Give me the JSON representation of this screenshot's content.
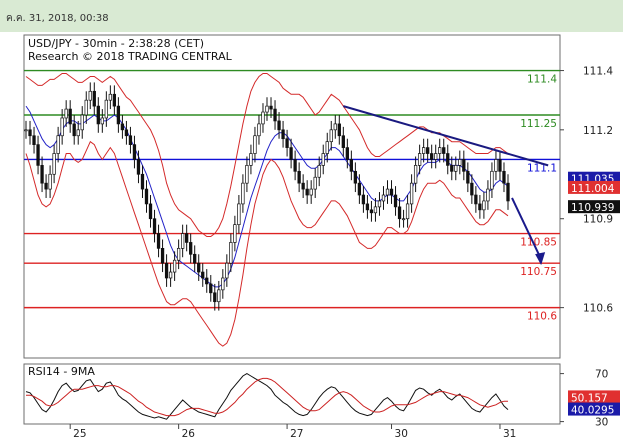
{
  "datestamp": "ค.ค. 31, 2018, 00:38",
  "chart_data": [
    {
      "type": "candlestick",
      "title": "USD/JPY - 30min - 2:38:28 (CET)",
      "subtitle": "Research © 2018 TRADING CENTRAL",
      "ylim": [
        110.43,
        111.52
      ],
      "y_ticks": [
        {
          "value": 111.4,
          "label": "111.4"
        },
        {
          "value": 111.2,
          "label": "111.2"
        },
        {
          "value": 110.9,
          "label": "110.9"
        },
        {
          "value": 110.6,
          "label": "110.6"
        }
      ],
      "x_ticks": [
        {
          "index": 11,
          "label": "25"
        },
        {
          "index": 38,
          "label": "26"
        },
        {
          "index": 65,
          "label": "27"
        },
        {
          "index": 91,
          "label": "30"
        },
        {
          "index": 118,
          "label": "31"
        }
      ],
      "levels": [
        {
          "value": 111.4,
          "label": "111.4",
          "color": "#2e8b22"
        },
        {
          "value": 111.25,
          "label": "111.25",
          "color": "#2e8b22"
        },
        {
          "value": 111.1,
          "label": "111.1",
          "color": "#1010d8"
        },
        {
          "value": 110.85,
          "label": "110.85",
          "color": "#dd2222"
        },
        {
          "value": 110.75,
          "label": "110.75",
          "color": "#dd2222"
        },
        {
          "value": 110.6,
          "label": "110.6",
          "color": "#dd2222"
        }
      ],
      "value_badges": [
        {
          "value": 111.035,
          "label": "111.035",
          "color": "#1a1aa8"
        },
        {
          "value": 111.004,
          "label": "111.004",
          "color": "#e03030"
        },
        {
          "value": 110.939,
          "label": "110.939",
          "color": "#111111"
        }
      ],
      "close": [
        111.2,
        111.18,
        111.15,
        111.08,
        111.02,
        111.0,
        111.05,
        111.12,
        111.18,
        111.24,
        111.27,
        111.22,
        111.18,
        111.2,
        111.25,
        111.3,
        111.33,
        111.28,
        111.22,
        111.24,
        111.3,
        111.32,
        111.28,
        111.22,
        111.2,
        111.18,
        111.15,
        111.1,
        111.05,
        111.0,
        110.95,
        110.9,
        110.85,
        110.8,
        110.75,
        110.7,
        110.72,
        110.76,
        110.8,
        110.85,
        110.82,
        110.78,
        110.75,
        110.72,
        110.7,
        110.68,
        110.65,
        110.62,
        110.66,
        110.7,
        110.75,
        110.82,
        110.88,
        110.95,
        111.02,
        111.08,
        111.12,
        111.18,
        111.22,
        111.26,
        111.28,
        111.27,
        111.23,
        111.2,
        111.17,
        111.14,
        111.1,
        111.06,
        111.02,
        111.0,
        110.98,
        111.0,
        111.04,
        111.08,
        111.12,
        111.16,
        111.2,
        111.22,
        111.18,
        111.14,
        111.1,
        111.06,
        111.02,
        110.98,
        110.95,
        110.93,
        110.92,
        110.94,
        110.96,
        110.98,
        111.0,
        110.98,
        110.94,
        110.9,
        110.9,
        110.95,
        111.02,
        111.08,
        111.12,
        111.14,
        111.12,
        111.1,
        111.12,
        111.14,
        111.12,
        111.08,
        111.06,
        111.08,
        111.1,
        111.06,
        111.02,
        110.98,
        110.95,
        110.93,
        110.96,
        111.0,
        111.06,
        111.1,
        111.06,
        111.02,
        110.96
      ],
      "bollinger_upper": [
        111.38,
        111.37,
        111.36,
        111.35,
        111.35,
        111.36,
        111.37,
        111.37,
        111.38,
        111.39,
        111.39,
        111.38,
        111.37,
        111.36,
        111.36,
        111.37,
        111.38,
        111.38,
        111.37,
        111.36,
        111.37,
        111.38,
        111.37,
        111.35,
        111.33,
        111.31,
        111.3,
        111.28,
        111.26,
        111.24,
        111.22,
        111.2,
        111.17,
        111.13,
        111.08,
        111.02,
        110.98,
        110.95,
        110.93,
        110.92,
        110.91,
        110.9,
        110.88,
        110.86,
        110.85,
        110.84,
        110.84,
        110.85,
        110.87,
        110.9,
        110.95,
        111.01,
        111.08,
        111.15,
        111.22,
        111.28,
        111.33,
        111.36,
        111.38,
        111.39,
        111.39,
        111.38,
        111.37,
        111.36,
        111.34,
        111.33,
        111.32,
        111.32,
        111.32,
        111.31,
        111.29,
        111.27,
        111.25,
        111.26,
        111.28,
        111.3,
        111.32,
        111.31,
        111.3,
        111.28,
        111.26,
        111.24,
        111.22,
        111.2,
        111.17,
        111.14,
        111.12,
        111.11,
        111.11,
        111.12,
        111.13,
        111.14,
        111.15,
        111.16,
        111.17,
        111.18,
        111.19,
        111.2,
        111.21,
        111.21,
        111.2,
        111.19,
        111.19,
        111.19,
        111.18,
        111.17,
        111.16,
        111.16,
        111.16,
        111.15,
        111.14,
        111.13,
        111.12,
        111.12,
        111.12,
        111.12,
        111.13,
        111.14,
        111.14,
        111.13,
        111.12
      ],
      "bollinger_lower": [
        111.12,
        111.08,
        111.03,
        110.98,
        110.95,
        110.94,
        110.95,
        110.98,
        111.02,
        111.07,
        111.12,
        111.12,
        111.1,
        111.09,
        111.1,
        111.13,
        111.16,
        111.15,
        111.12,
        111.1,
        111.12,
        111.14,
        111.12,
        111.08,
        111.04,
        111.0,
        110.96,
        110.92,
        110.88,
        110.84,
        110.8,
        110.76,
        110.72,
        110.68,
        110.65,
        110.62,
        110.61,
        110.61,
        110.62,
        110.63,
        110.63,
        110.62,
        110.6,
        110.58,
        110.56,
        110.54,
        110.52,
        110.5,
        110.48,
        110.47,
        110.48,
        110.51,
        110.56,
        110.63,
        110.71,
        110.8,
        110.88,
        110.95,
        111.0,
        111.05,
        111.08,
        111.1,
        111.09,
        111.07,
        111.04,
        111.0,
        110.96,
        110.93,
        110.9,
        110.88,
        110.87,
        110.87,
        110.88,
        110.9,
        110.92,
        110.94,
        110.96,
        110.96,
        110.95,
        110.93,
        110.91,
        110.88,
        110.85,
        110.82,
        110.81,
        110.8,
        110.8,
        110.81,
        110.83,
        110.85,
        110.87,
        110.87,
        110.86,
        110.85,
        110.85,
        110.86,
        110.89,
        110.93,
        110.97,
        111.0,
        111.02,
        111.02,
        111.02,
        111.03,
        111.02,
        111.0,
        110.98,
        110.97,
        110.97,
        110.95,
        110.93,
        110.91,
        110.89,
        110.88,
        110.88,
        110.89,
        110.91,
        110.93,
        110.93,
        110.92,
        110.91
      ],
      "moving_average": [
        111.28,
        111.26,
        111.23,
        111.2,
        111.17,
        111.15,
        111.14,
        111.15,
        111.17,
        111.2,
        111.22,
        111.23,
        111.23,
        111.22,
        111.22,
        111.23,
        111.24,
        111.25,
        111.24,
        111.23,
        111.23,
        111.24,
        111.25,
        111.24,
        111.22,
        111.2,
        111.17,
        111.14,
        111.11,
        111.08,
        111.05,
        111.01,
        110.97,
        110.93,
        110.89,
        110.85,
        110.81,
        110.78,
        110.76,
        110.75,
        110.74,
        110.73,
        110.72,
        110.71,
        110.7,
        110.69,
        110.68,
        110.67,
        110.67,
        110.68,
        110.7,
        110.73,
        110.77,
        110.82,
        110.87,
        110.92,
        110.97,
        111.01,
        111.05,
        111.09,
        111.13,
        111.16,
        111.18,
        111.19,
        111.19,
        111.18,
        111.16,
        111.14,
        111.12,
        111.1,
        111.08,
        111.07,
        111.07,
        111.08,
        111.1,
        111.12,
        111.14,
        111.14,
        111.13,
        111.11,
        111.09,
        111.07,
        111.05,
        111.03,
        111.01,
        110.99,
        110.97,
        110.96,
        110.96,
        110.97,
        110.98,
        110.98,
        110.97,
        110.96,
        110.96,
        110.98,
        111.0,
        111.03,
        111.06,
        111.08,
        111.09,
        111.09,
        111.09,
        111.1,
        111.1,
        111.09,
        111.08,
        111.08,
        111.08,
        111.07,
        111.06,
        111.04,
        111.02,
        111.0,
        110.99,
        110.99,
        111.0,
        111.02,
        111.03,
        111.02,
        111.01
      ],
      "trendline": [
        {
          "index": 79,
          "value": 111.28
        },
        {
          "index": 130,
          "value": 111.08
        }
      ],
      "forecast_arrow": [
        {
          "index": 121,
          "value": 110.97
        },
        {
          "index": 128,
          "value": 110.75
        }
      ]
    },
    {
      "type": "line",
      "title": "RSI14 - 9MA",
      "ylim": [
        28,
        78
      ],
      "y_ticks": [
        {
          "value": 70,
          "label": "70"
        },
        {
          "value": 30,
          "label": "30"
        }
      ],
      "value_badges": [
        {
          "value": 50.157,
          "label": "50.157",
          "color": "#e03030"
        },
        {
          "value": 40.0295,
          "label": "40.0295",
          "color": "#1a1aa8"
        }
      ],
      "series": [
        {
          "color": "#111111",
          "values": [
            55,
            54,
            50,
            45,
            40,
            38,
            42,
            48,
            55,
            60,
            62,
            58,
            55,
            56,
            60,
            64,
            65,
            60,
            55,
            57,
            62,
            63,
            58,
            52,
            49,
            47,
            44,
            41,
            38,
            36,
            35,
            34,
            33,
            34,
            33,
            32,
            36,
            40,
            44,
            48,
            45,
            42,
            40,
            38,
            37,
            36,
            35,
            34,
            40,
            45,
            50,
            56,
            60,
            64,
            68,
            70,
            68,
            66,
            64,
            62,
            60,
            57,
            52,
            49,
            46,
            44,
            41,
            38,
            36,
            35,
            36,
            40,
            45,
            50,
            54,
            57,
            59,
            58,
            54,
            50,
            46,
            42,
            39,
            37,
            36,
            35,
            36,
            40,
            44,
            48,
            50,
            47,
            43,
            40,
            39,
            44,
            50,
            56,
            58,
            57,
            54,
            52,
            55,
            57,
            54,
            50,
            48,
            51,
            53,
            49,
            45,
            41,
            39,
            38,
            42,
            46,
            50,
            53,
            48,
            43,
            40
          ]
        },
        {
          "color": "#cc2222",
          "values": [
            52,
            52,
            51,
            49,
            47,
            44,
            43,
            44,
            46,
            49,
            52,
            55,
            57,
            57,
            57,
            58,
            59,
            60,
            60,
            59,
            59,
            60,
            60,
            59,
            57,
            55,
            53,
            50,
            47,
            45,
            42,
            40,
            38,
            37,
            36,
            35,
            35,
            35,
            36,
            38,
            40,
            41,
            41,
            41,
            40,
            39,
            38,
            37,
            37,
            38,
            40,
            43,
            46,
            50,
            53,
            57,
            60,
            63,
            65,
            66,
            66,
            65,
            63,
            60,
            57,
            54,
            51,
            48,
            45,
            42,
            40,
            39,
            39,
            40,
            43,
            46,
            49,
            52,
            54,
            55,
            54,
            52,
            49,
            46,
            43,
            41,
            39,
            38,
            38,
            39,
            41,
            43,
            44,
            44,
            44,
            44,
            45,
            46,
            48,
            50,
            52,
            53,
            54,
            55,
            55,
            54,
            53,
            52,
            52,
            51,
            50,
            48,
            46,
            44,
            43,
            42,
            43,
            44,
            46,
            47,
            47
          ]
        }
      ]
    }
  ]
}
